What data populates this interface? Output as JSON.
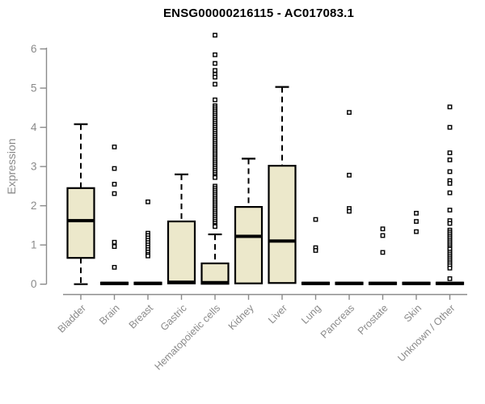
{
  "page_title": "ENSG00000216115 - AC017083.1",
  "chart_data": {
    "type": "boxplot",
    "title": "ENSG00000216115 - AC017083.1",
    "xlabel": "",
    "ylabel": "Expression",
    "ylim": [
      0,
      6.5
    ],
    "yticks": [
      0,
      1,
      2,
      3,
      4,
      5,
      6
    ],
    "grid": false,
    "legend": "none",
    "categories": [
      "Bladder",
      "Brain",
      "Breast",
      "Gastric",
      "Hematopoietic cells",
      "Kidney",
      "Liver",
      "Lung",
      "Pancreas",
      "Prostate",
      "Skin",
      "Unknown / Other"
    ],
    "series": [
      {
        "name": "Bladder",
        "whisker_low": 0,
        "q1": 0.67,
        "median": 1.62,
        "q3": 2.45,
        "whisker_high": 4.08,
        "outliers": []
      },
      {
        "name": "Brain",
        "whisker_low": 0,
        "q1": 0,
        "median": 0.02,
        "q3": 0.04,
        "whisker_high": 0.04,
        "outliers": [
          3.5,
          2.95,
          2.55,
          2.31,
          1.07,
          0.96,
          0.43
        ]
      },
      {
        "name": "Breast",
        "whisker_low": 0,
        "q1": 0,
        "median": 0.02,
        "q3": 0.04,
        "whisker_high": 0.04,
        "outliers": [
          2.1,
          1.3,
          1.24,
          1.18,
          1.12,
          1.06,
          1.0,
          0.94,
          0.88,
          0.82,
          0.76,
          0.72
        ]
      },
      {
        "name": "Gastric",
        "whisker_low": 0,
        "q1": 0.02,
        "median": 0.05,
        "q3": 1.6,
        "whisker_high": 2.8,
        "outliers": []
      },
      {
        "name": "Hematopoietic cells",
        "whisker_low": 0,
        "q1": 0.01,
        "median": 0.04,
        "q3": 0.53,
        "whisker_high": 1.27,
        "outliers": [
          6.35,
          5.85,
          5.63,
          5.45,
          5.35,
          5.28,
          5.1,
          4.7,
          4.55,
          4.5,
          4.45,
          4.4,
          4.35,
          4.3,
          4.25,
          4.2,
          4.15,
          4.1,
          4.05,
          4.0,
          3.95,
          3.9,
          3.85,
          3.8,
          3.75,
          3.7,
          3.65,
          3.6,
          3.55,
          3.5,
          3.45,
          3.4,
          3.35,
          3.3,
          3.25,
          3.2,
          3.15,
          3.1,
          3.05,
          3.0,
          2.95,
          2.9,
          2.85,
          2.8,
          2.75,
          2.72,
          2.5,
          2.45,
          2.4,
          2.35,
          2.3,
          2.25,
          2.2,
          2.15,
          2.1,
          2.05,
          2.0,
          1.95,
          1.9,
          1.85,
          1.8,
          1.75,
          1.7,
          1.65,
          1.6,
          1.55,
          1.5,
          1.47
        ]
      },
      {
        "name": "Kidney",
        "whisker_low": 0,
        "q1": 0.02,
        "median": 1.22,
        "q3": 1.97,
        "whisker_high": 3.2,
        "outliers": []
      },
      {
        "name": "Liver",
        "whisker_low": 0,
        "q1": 0.03,
        "median": 1.1,
        "q3": 3.02,
        "whisker_high": 5.03,
        "outliers": []
      },
      {
        "name": "Lung",
        "whisker_low": 0,
        "q1": 0,
        "median": 0.02,
        "q3": 0.04,
        "whisker_high": 0.04,
        "outliers": [
          1.65,
          0.93,
          0.86
        ]
      },
      {
        "name": "Pancreas",
        "whisker_low": 0,
        "q1": 0,
        "median": 0.02,
        "q3": 0.04,
        "whisker_high": 0.04,
        "outliers": [
          4.38,
          2.78,
          1.93,
          1.86
        ]
      },
      {
        "name": "Prostate",
        "whisker_low": 0,
        "q1": 0,
        "median": 0.02,
        "q3": 0.04,
        "whisker_high": 0.04,
        "outliers": [
          1.41,
          1.24,
          0.81
        ]
      },
      {
        "name": "Skin",
        "whisker_low": 0,
        "q1": 0,
        "median": 0.02,
        "q3": 0.04,
        "whisker_high": 0.04,
        "outliers": [
          1.81,
          1.6,
          1.34
        ]
      },
      {
        "name": "Unknown / Other",
        "whisker_low": 0,
        "q1": 0,
        "median": 0.02,
        "q3": 0.04,
        "whisker_high": 0.04,
        "outliers": [
          4.52,
          4.0,
          3.35,
          3.17,
          2.87,
          2.64,
          2.57,
          2.33,
          1.89,
          1.62,
          1.55,
          1.38,
          1.33,
          1.28,
          1.23,
          1.18,
          1.13,
          1.08,
          1.03,
          0.98,
          0.93,
          0.89,
          0.82,
          0.77,
          0.72,
          0.67,
          0.62,
          0.57,
          0.52,
          0.47,
          0.41,
          0.14
        ]
      }
    ],
    "colors": {
      "box_fill": "#ece8cb",
      "box_stroke": "#000000",
      "median": "#000000",
      "whisker": "#000000",
      "outlier_stroke": "#000000",
      "outlier_fill": "#ffffff",
      "axis": "#8a8a8a",
      "tick_label": "#8a8a8a",
      "title": "#000000"
    }
  }
}
